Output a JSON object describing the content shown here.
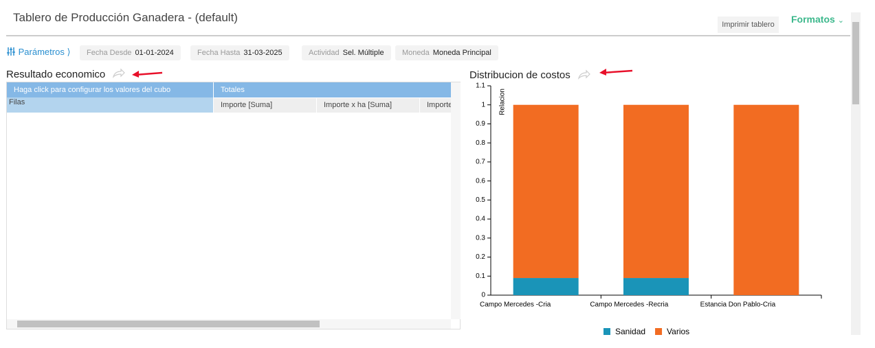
{
  "header": {
    "title": "Tablero de Producción Ganadera - (default)",
    "print_button": "Imprimir tablero",
    "formats": "Formatos"
  },
  "params": {
    "label": "Parámetros",
    "fields": [
      {
        "label": "Fecha Desde",
        "value": "01-01-2024"
      },
      {
        "label": "Fecha Hasta",
        "value": "31-03-2025"
      },
      {
        "label": "Actividad",
        "value": "Sel. Múltiple"
      },
      {
        "label": "Moneda",
        "value": "Moneda Principal"
      }
    ]
  },
  "pivot": {
    "title": "Resultado economico",
    "config_hint": "Haga click para configurar los valores del cubo",
    "totals": "Totales",
    "rows_label": "Filas",
    "columns": [
      "Importe [Suma]",
      "Importe x ha [Suma]",
      "Importe"
    ]
  },
  "chart_data": {
    "type": "bar",
    "stacked": true,
    "title": "Distribucion de costos",
    "y_label": "Relacion",
    "categories": [
      "Campo Mercedes -Cria",
      "Campo Mercedes -Recria",
      "Estancia Don Pablo-Cria"
    ],
    "series": [
      {
        "name": "Sanidad",
        "color": "#1a94b8",
        "values": [
          0.09,
          0.09,
          0
        ]
      },
      {
        "name": "Varios",
        "color": "#f26c22",
        "values": [
          0.91,
          0.91,
          1
        ]
      }
    ],
    "ylim": [
      0,
      1.1
    ],
    "yticks": [
      0,
      0.1,
      0.2,
      0.3,
      0.4,
      0.5,
      0.6,
      0.7,
      0.8,
      0.9,
      1,
      1.1
    ]
  }
}
